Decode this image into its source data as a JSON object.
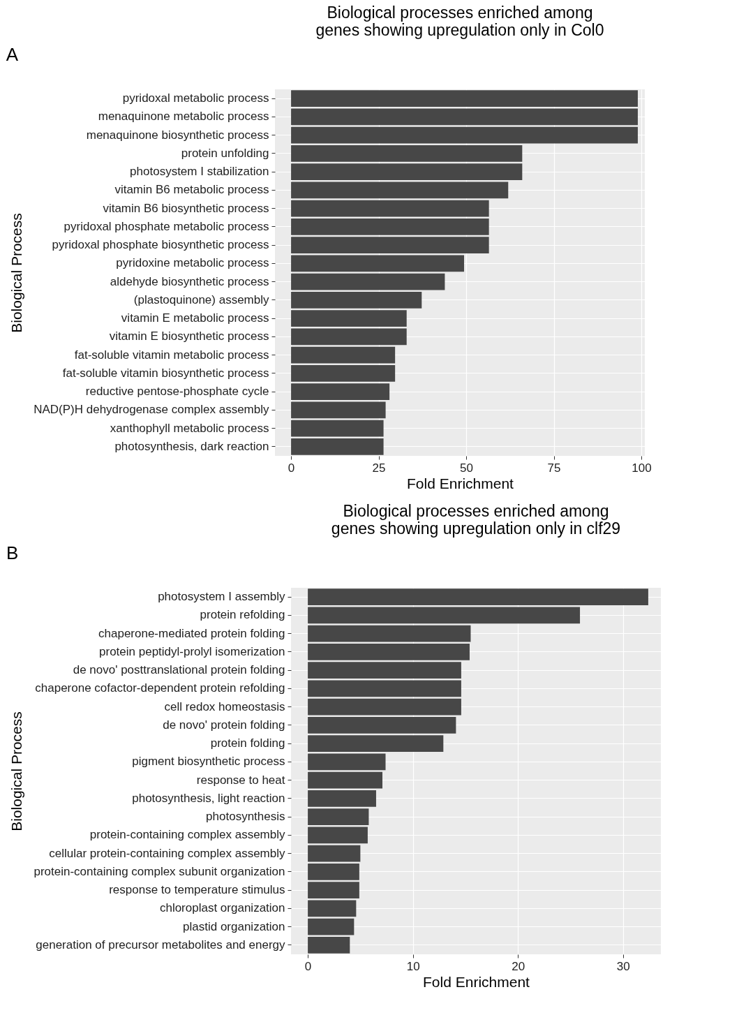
{
  "chart_data": [
    {
      "type": "bar",
      "orientation": "horizontal",
      "title": "Biological processes enriched among genes showing upregulation only in Col0",
      "xlabel": "Fold Enrichment",
      "ylabel": "Biological Process",
      "annotations": [
        "A"
      ],
      "color": "#474747",
      "grid": true,
      "xlim": [
        -4.6,
        101
      ],
      "xticks": [
        0,
        25,
        50,
        75,
        100
      ],
      "categories": [
        "pyridoxal metabolic process",
        "menaquinone metabolic process",
        "menaquinone biosynthetic process",
        "protein unfolding",
        "photosystem I stabilization",
        "vitamin B6 metabolic process",
        "vitamin B6 biosynthetic process",
        "pyridoxal phosphate metabolic process",
        "pyridoxal phosphate biosynthetic process",
        "pyridoxine metabolic process",
        "aldehyde biosynthetic process",
        "(plastoquinone) assembly",
        "vitamin E metabolic process",
        "vitamin E biosynthetic process",
        "fat-soluble vitamin metabolic process",
        "fat-soluble vitamin biosynthetic process",
        "reductive pentose-phosphate cycle",
        "NAD(P)H dehydrogenase complex assembly",
        "xanthophyll metabolic process",
        "photosynthesis, dark reaction"
      ],
      "values": [
        99,
        99,
        99,
        66,
        66,
        62,
        56.5,
        56.5,
        56.5,
        49.4,
        43.9,
        37.3,
        33,
        33,
        29.7,
        29.7,
        28.1,
        27,
        26.4,
        26.4
      ]
    },
    {
      "type": "bar",
      "orientation": "horizontal",
      "title": "Biological processes enriched among genes showing upregulation only in clf29",
      "xlabel": "Fold Enrichment",
      "ylabel": "Biological Process",
      "annotations": [
        "B"
      ],
      "color": "#474747",
      "grid": true,
      "xlim": [
        -1.6,
        33.6
      ],
      "xticks": [
        0,
        10,
        20,
        30
      ],
      "categories": [
        "photosystem I assembly",
        "protein refolding",
        "chaperone-mediated protein folding",
        "protein peptidyl-prolyl isomerization",
        "de novo' posttranslational protein folding",
        "chaperone cofactor-dependent protein refolding",
        "cell redox homeostasis",
        "de novo' protein folding",
        "protein folding",
        "pigment biosynthetic process",
        "response to heat",
        "photosynthesis, light reaction",
        "photosynthesis",
        "protein-containing complex assembly",
        "cellular protein-containing complex assembly",
        "protein-containing complex subunit organization",
        "response to temperature stimulus",
        "chloroplast organization",
        "plastid organization",
        "generation of precursor metabolites and energy"
      ],
      "values": [
        32.4,
        25.9,
        15.5,
        15.4,
        14.6,
        14.6,
        14.6,
        14.1,
        12.9,
        7.4,
        7.1,
        6.5,
        5.8,
        5.7,
        5.0,
        4.9,
        4.9,
        4.6,
        4.4,
        4.0
      ]
    }
  ]
}
